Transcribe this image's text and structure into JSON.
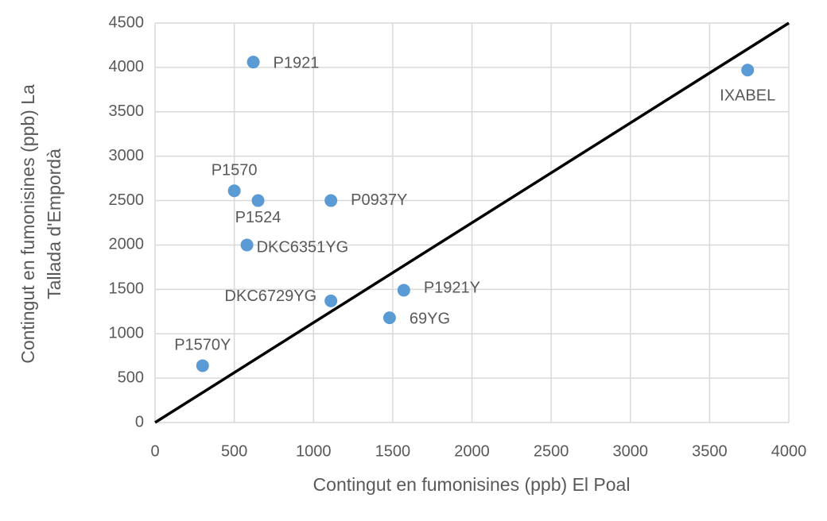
{
  "chart_data": {
    "type": "scatter",
    "xlabel": "Contingut en fumonisines (ppb) El Poal",
    "ylabel": [
      "Contingut en fumonisines (ppb) La",
      "Tallada d'Empordà"
    ],
    "xlim": [
      0,
      4000
    ],
    "ylim": [
      0,
      4500
    ],
    "xticks": [
      0,
      500,
      1000,
      1500,
      2000,
      2500,
      3000,
      3500,
      4000
    ],
    "yticks": [
      0,
      500,
      1000,
      1500,
      2000,
      2500,
      3000,
      3500,
      4000,
      4500
    ],
    "grid": true,
    "series": [
      {
        "color": "#5b9bd5",
        "labels": [
          "P1921",
          "IXABEL",
          "P1570",
          "P1524",
          "P0937Y",
          "DKC6351YG",
          "DKC6729YG",
          "P1921Y",
          "69YG",
          "P1570Y"
        ],
        "x": [
          620,
          3740,
          500,
          650,
          1110,
          580,
          1110,
          1570,
          1480,
          300
        ],
        "values": [
          4060,
          3970,
          2610,
          2500,
          2500,
          2000,
          1370,
          1490,
          1180,
          640
        ]
      }
    ],
    "line": {
      "color": "#000000",
      "x": [
        0,
        4000
      ],
      "values": [
        0,
        4500
      ]
    }
  }
}
